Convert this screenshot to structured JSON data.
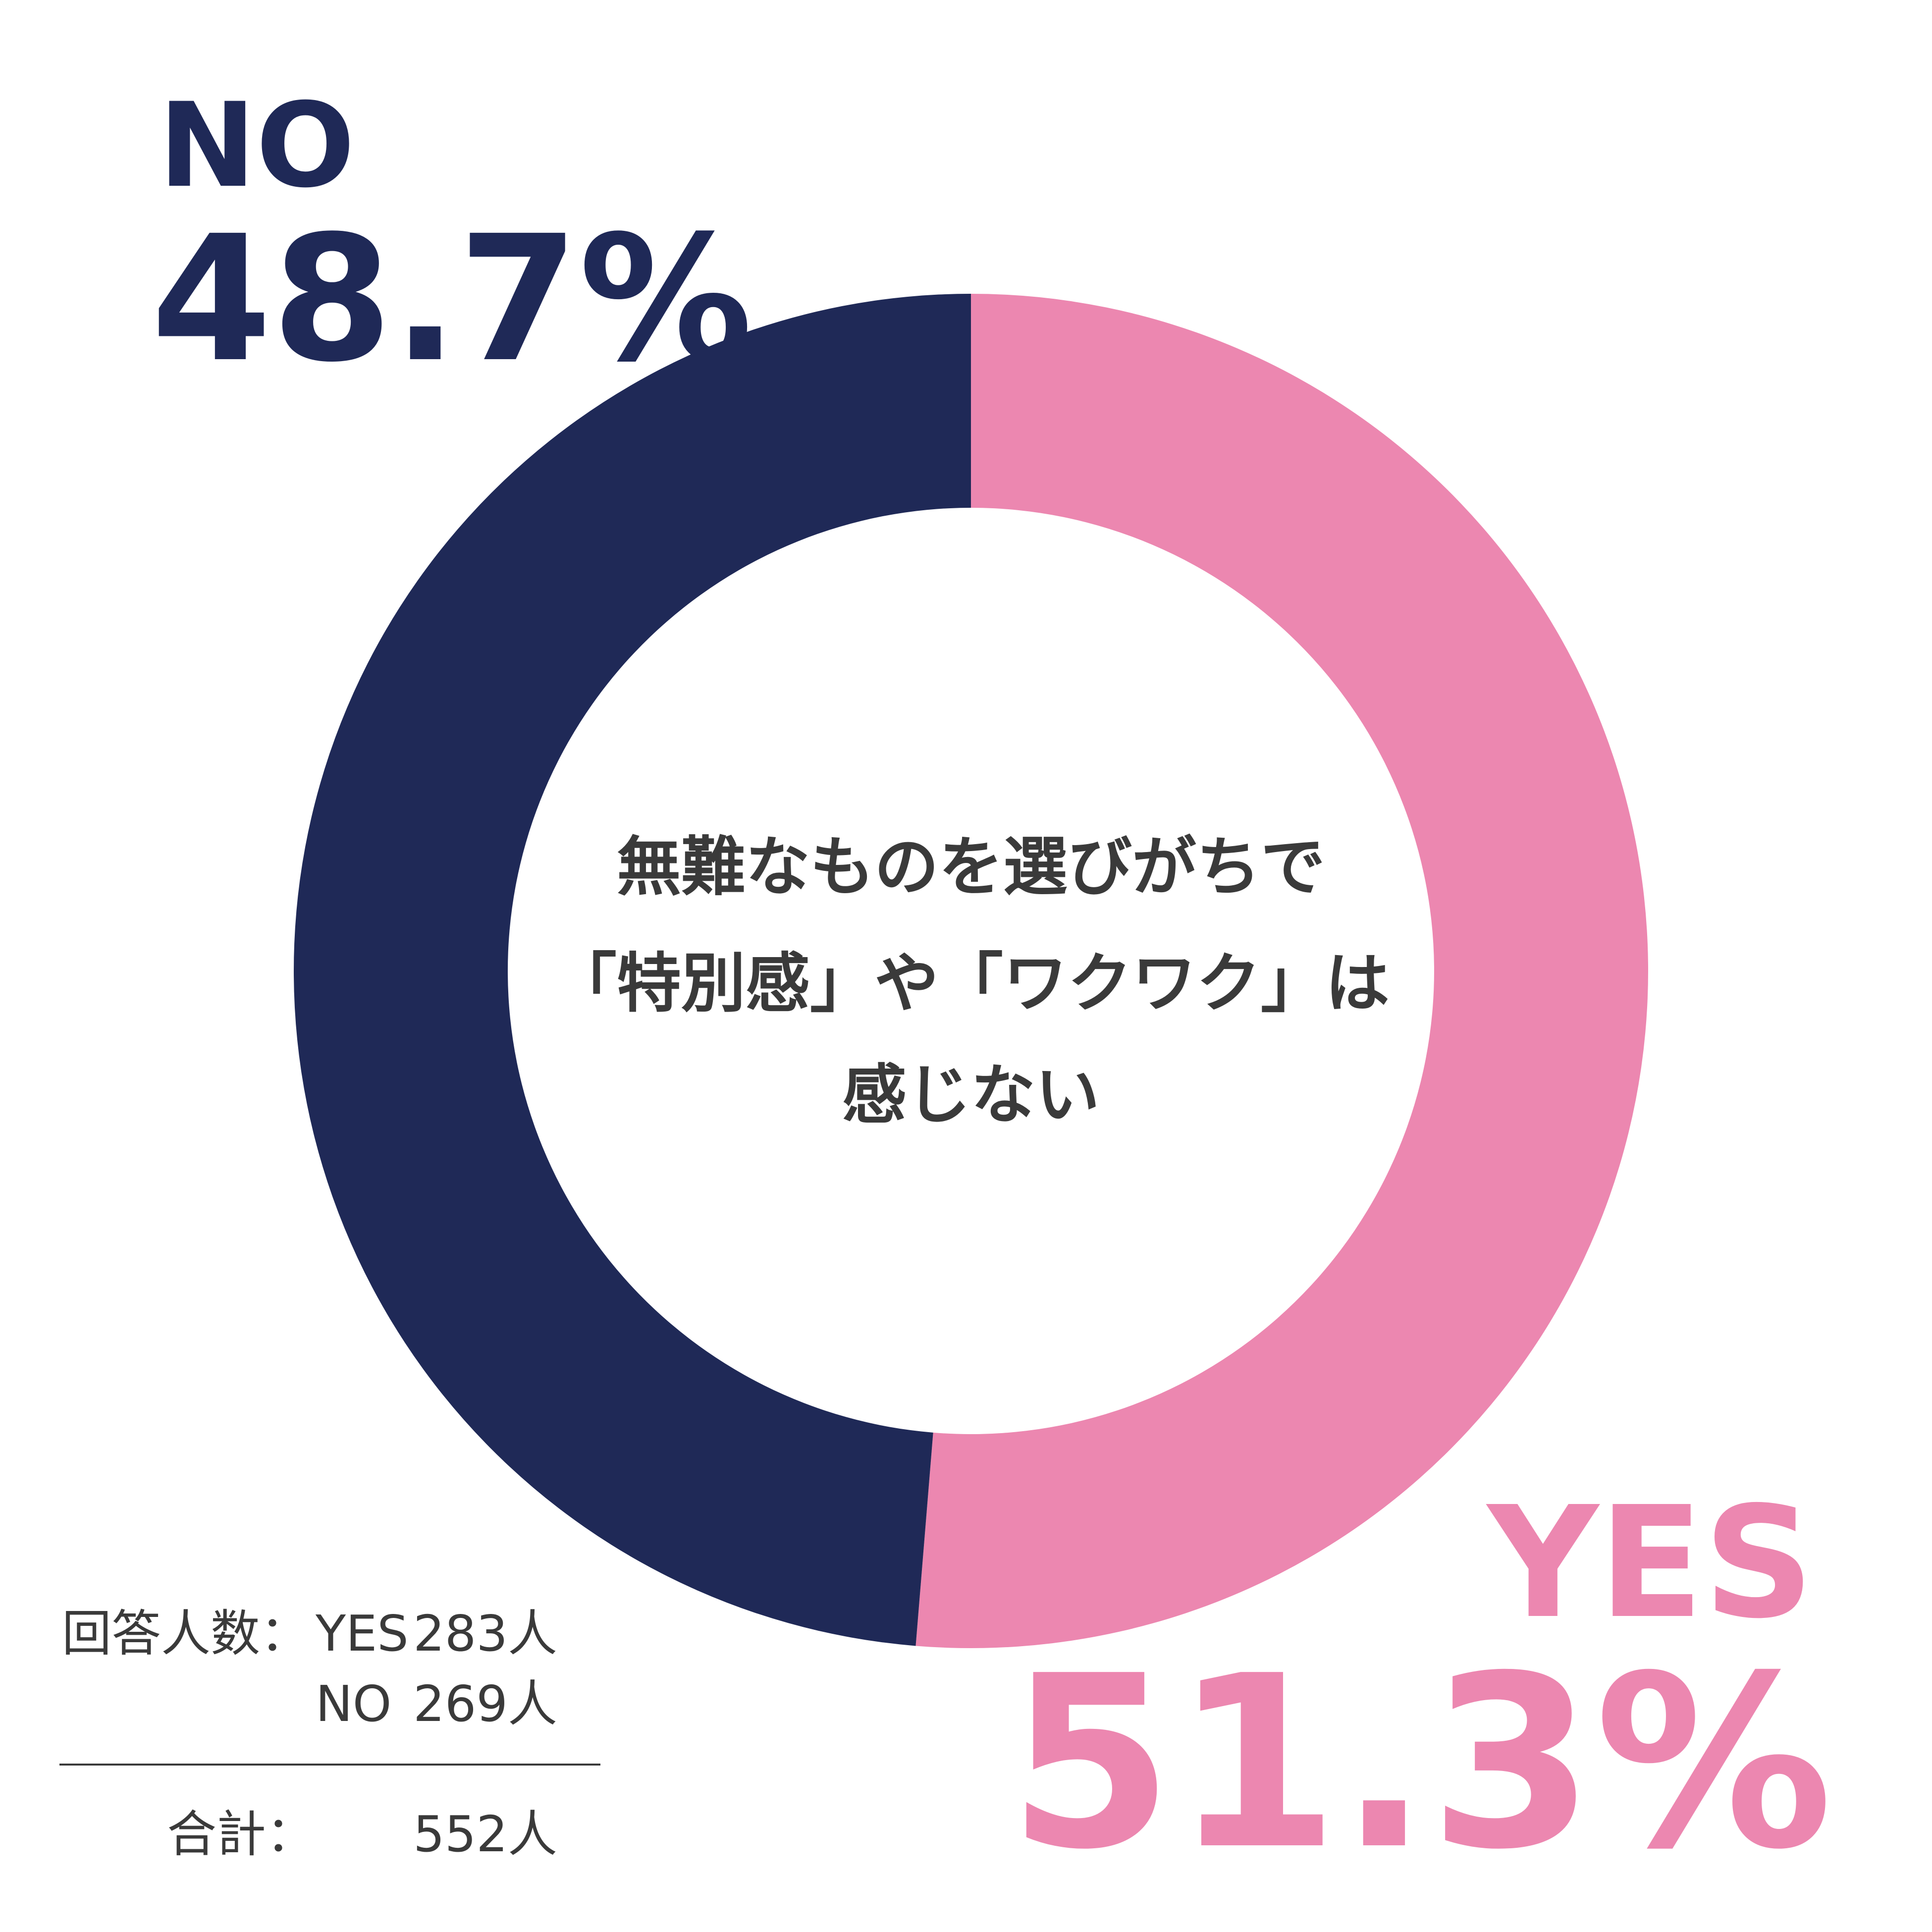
{
  "chart_data": {
    "type": "donut",
    "categories": [
      "YES",
      "NO"
    ],
    "values": [
      51.3,
      48.7
    ],
    "value_labels": [
      "51.3%",
      "48.7%"
    ],
    "colors": [
      "#ec87b0",
      "#1f2957"
    ],
    "center_text": [
      "無難なものを選びがちで",
      "「特別感」や「ワクワク」は",
      "感じない"
    ],
    "footnote": {
      "label": "回答人数：",
      "rows": [
        {
          "name": "YES",
          "count": "283人"
        },
        {
          "name": "NO",
          "count": "269人"
        }
      ],
      "total_label": "合計：",
      "total": "552人"
    }
  }
}
